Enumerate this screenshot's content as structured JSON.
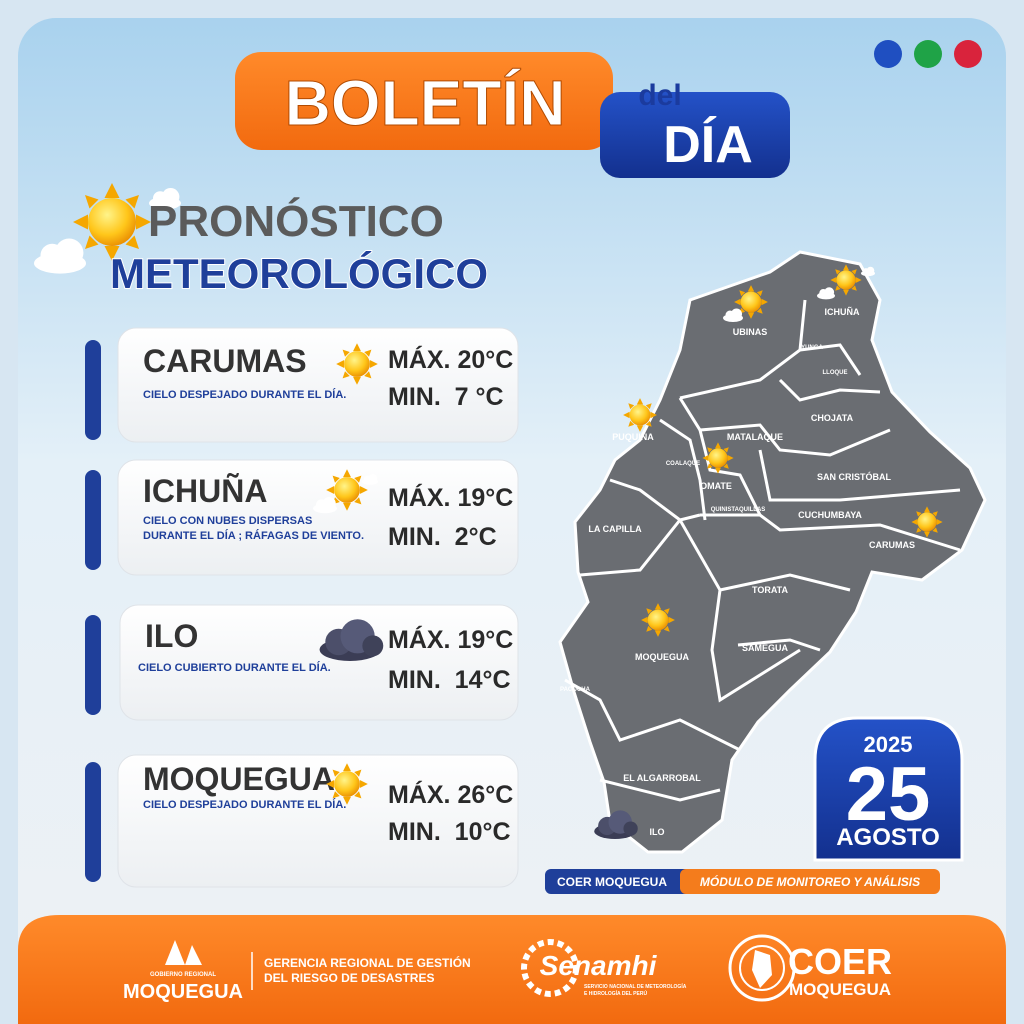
{
  "header": {
    "title": "BOLETÍN",
    "subtitle_top": "del",
    "subtitle_bottom": "DÍA"
  },
  "section_title": {
    "line_1": "PRONÓSTICO",
    "line_2": "METEOROLÓGICO"
  },
  "forecasts": [
    {
      "place": "CARUMAS",
      "description": [
        "CIELO DESPEJADO DURANTE EL DÍA."
      ],
      "max": "MÁX. 20°C",
      "min": "MIN.  7 °C"
    },
    {
      "place": "ICHUÑA",
      "description": [
        "CIELO CON NUBES DISPERSAS",
        "DURANTE EL DÍA ; RÁFAGAS DE VIENTO."
      ],
      "max": "MÁX. 19°C",
      "min": "MIN.  2°C"
    },
    {
      "place": "ILO",
      "description": [
        "CIELO CUBIERTO DURANTE EL DÍA."
      ],
      "max": "MÁX. 19°C",
      "min": "MIN.  14°C"
    },
    {
      "place": "MOQUEGUA",
      "description": [
        "CIELO DESPEJADO DURANTE EL DÍA."
      ],
      "max": "MÁX. 26°C",
      "min": "MIN.  10°C"
    }
  ],
  "map": {
    "regions": [
      "UBINAS",
      "ICHUÑA",
      "YUNGA",
      "LLOQUE",
      "CHOJATA",
      "MATALAQUE",
      "PUQUINA",
      "COALAQUE",
      "OMATE",
      "QUINISTAQUILLAS",
      "SAN CRISTÓBAL",
      "CUCHUMBAYA",
      "CARUMAS",
      "LA CAPILLA",
      "TORATA",
      "MOQUEGUA",
      "SAMEGUA",
      "PACOCHA",
      "EL ALGARROBAL",
      "ILO"
    ]
  },
  "date": {
    "year": "2025",
    "day": "25",
    "month": "AGOSTO"
  },
  "tags": [
    "COER MOQUEGUA",
    "MÓDULO DE MONITOREO Y ANÁLISIS"
  ],
  "footer": {
    "gov": {
      "small": "GOBIERNO REGIONAL",
      "name": "MOQUEGUA"
    },
    "office": [
      "GERENCIA REGIONAL DE GESTIÓN",
      "DEL RIESGO DE DESASTRES"
    ],
    "senamhi": {
      "name": "Senamhi",
      "sub": [
        "SERVICIO NACIONAL DE METEOROLOGÍA",
        "E HIDROLOGÍA DEL PERÚ"
      ]
    },
    "coer": {
      "name": "COER",
      "sub": "MOQUEGUA"
    }
  }
}
